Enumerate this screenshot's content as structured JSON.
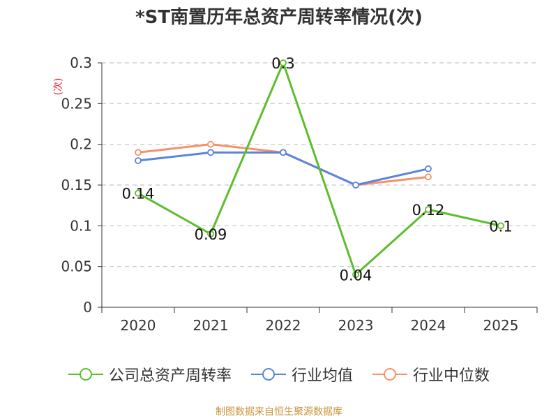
{
  "chart_data": {
    "type": "line",
    "title": "*ST南置历年总资产周转率情况(次)",
    "ylabel": "(次)",
    "xlabel": "",
    "categories": [
      "2020",
      "2021",
      "2022",
      "2023",
      "2024",
      "2025"
    ],
    "ylim": [
      0,
      0.3
    ],
    "yticks": [
      "0",
      "0.05",
      "0.1",
      "0.15",
      "0.2",
      "0.25",
      "0.3"
    ],
    "grid": true,
    "legend_position": "bottom",
    "series": [
      {
        "name": "公司总资产周转率",
        "color": "#5cbd2e",
        "values": [
          0.14,
          0.09,
          0.3,
          0.04,
          0.12,
          0.1
        ],
        "labels": [
          "0.14",
          "0.09",
          "0.3",
          "0.04",
          "0.12",
          "0.1"
        ]
      },
      {
        "name": "行业均值",
        "color": "#5b84de",
        "values": [
          0.18,
          0.19,
          0.19,
          0.15,
          0.17,
          null
        ]
      },
      {
        "name": "行业中位数",
        "color": "#f5926b",
        "values": [
          0.19,
          0.2,
          0.19,
          0.15,
          0.16,
          null
        ]
      }
    ]
  },
  "source": "制图数据来自恒生聚源数据库"
}
